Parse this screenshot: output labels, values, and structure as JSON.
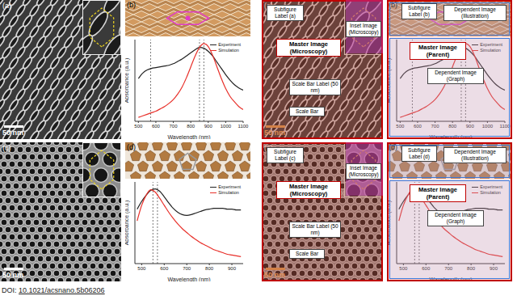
{
  "chart_data": [
    {
      "type": "line",
      "x_label": "Wavelength (nm)",
      "y_label": "Absorbance (a.u.)",
      "x": [
        500,
        525,
        550,
        575,
        600,
        625,
        650,
        675,
        700,
        725,
        750,
        775,
        800,
        825,
        850,
        875,
        900,
        925,
        950,
        975,
        1000,
        1025,
        1050,
        1075,
        1100
      ],
      "series": [
        {
          "name": "Experiment",
          "color": "#222222",
          "values": [
            0.55,
            0.62,
            0.66,
            0.68,
            0.69,
            0.7,
            0.71,
            0.72,
            0.74,
            0.77,
            0.8,
            0.84,
            0.88,
            0.92,
            0.95,
            0.94,
            0.9,
            0.84,
            0.76,
            0.68,
            0.6,
            0.53,
            0.47,
            0.43,
            0.4
          ]
        },
        {
          "name": "Simulation",
          "color": "#e8302a",
          "values": [
            0.05,
            0.07,
            0.09,
            0.11,
            0.13,
            0.16,
            0.19,
            0.23,
            0.28,
            0.35,
            0.44,
            0.56,
            0.7,
            0.84,
            0.95,
            1.0,
            0.96,
            0.85,
            0.7,
            0.55,
            0.42,
            0.32,
            0.25,
            0.19,
            0.15
          ]
        }
      ],
      "xlim": [
        480,
        1100
      ],
      "xticks": [
        500,
        600,
        700,
        800,
        900,
        1000,
        1100
      ],
      "ylim": [
        0,
        1.05
      ],
      "tick_labels": "x",
      "legend": "upper right",
      "reference_lines": [
        570,
        850,
        875
      ]
    },
    {
      "type": "line",
      "x_label": "Wavelength (nm)",
      "y_label": "Absorbance (a.u.)",
      "x": [
        480,
        500,
        520,
        540,
        560,
        580,
        600,
        620,
        640,
        660,
        680,
        700,
        720,
        740,
        760,
        780,
        800,
        820,
        840,
        860,
        880,
        900,
        920,
        940
      ],
      "series": [
        {
          "name": "Experiment",
          "color": "#222222",
          "values": [
            0.7,
            0.8,
            0.88,
            0.94,
            0.96,
            0.93,
            0.86,
            0.78,
            0.71,
            0.66,
            0.63,
            0.62,
            0.63,
            0.65,
            0.67,
            0.69,
            0.7,
            0.71,
            0.71,
            0.71,
            0.7,
            0.7,
            0.69,
            0.69
          ]
        },
        {
          "name": "Simulation",
          "color": "#e8302a",
          "values": [
            0.55,
            0.75,
            0.88,
            0.95,
            0.92,
            0.84,
            0.75,
            0.66,
            0.58,
            0.51,
            0.45,
            0.4,
            0.35,
            0.31,
            0.27,
            0.24,
            0.21,
            0.18,
            0.16,
            0.14,
            0.12,
            0.11,
            0.1,
            0.09
          ]
        }
      ],
      "xlim": [
        470,
        950
      ],
      "xticks": [
        500,
        600,
        700,
        800,
        900
      ],
      "ylim": [
        0,
        1.05
      ],
      "tick_labels": "x",
      "legend": "upper right",
      "reference_lines": [
        550,
        570
      ]
    }
  ],
  "figure": {
    "panels": {
      "a": {
        "label": "(a)",
        "scale_bar": "50 nm"
      },
      "b": {
        "label": "(b)"
      },
      "c": {
        "label": "(c)",
        "scale_bar": "50 nm"
      },
      "d": {
        "label": "(d)"
      }
    },
    "doi_prefix": "DOI:",
    "doi": "10.1021/acsnano.5b06206"
  },
  "annotations": {
    "a": {
      "subfigure_label": "Subfigure Label (a)",
      "master": "Master Image (Microscopy)",
      "inset": "Inset Image (Microscopy)",
      "scale_bar_label": "Scale Bar Label (50 nm)",
      "scale_bar": "Scale Bar"
    },
    "b": {
      "subfigure_label": "Subfigure Label (b)",
      "illustration": "Dependent Image (Illustration)",
      "master": "Master Image (Parent)",
      "graph": "Dependent Image (Graph)"
    },
    "c": {
      "subfigure_label": "Subfigure Label (c)",
      "master": "Master Image (Microscopy)",
      "inset": "Inset Image (Microscopy)",
      "scale_bar_label": "Scale Bar Label (50 nm)",
      "scale_bar": "Scale Bar"
    },
    "d": {
      "subfigure_label": "Subfigure Label (d)",
      "illustration": "Dependent Image (Illustration)",
      "master": "Master Image (Parent)",
      "graph": "Dependent Image (Graph)"
    }
  }
}
